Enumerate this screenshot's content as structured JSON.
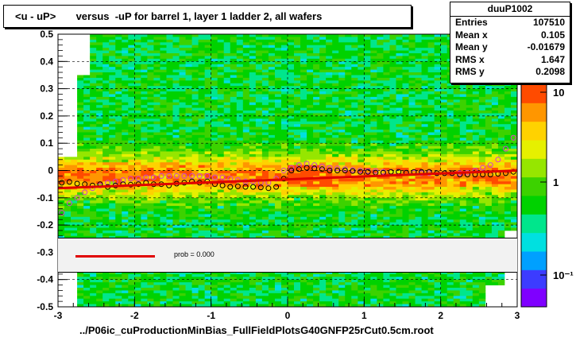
{
  "header": {
    "title": "<u - uP>       versus  -uP for barrel 1, layer 1 ladder 2, all wafers"
  },
  "stats": {
    "name": "duuP1002",
    "rows": [
      {
        "label": "Entries",
        "value": "107510"
      },
      {
        "label": "Mean x",
        "value": "0.105"
      },
      {
        "label": "Mean y",
        "value": "-0.01679"
      },
      {
        "label": "RMS x",
        "value": "1.647"
      },
      {
        "label": "RMS y",
        "value": "0.2098"
      }
    ]
  },
  "legend": {
    "fit_label": "prob = 0.000"
  },
  "colors": {
    "fit_line": "#e00000",
    "profile_black": "#000000",
    "profile_magenta": "#d040d0",
    "colormap": [
      "#7f00ff",
      "#3c3cff",
      "#00a0ff",
      "#00e0e0",
      "#00e68c",
      "#00d200",
      "#3cd200",
      "#96e600",
      "#e6f000",
      "#ffd200",
      "#ff9600",
      "#ff4b00"
    ]
  },
  "chart_data": {
    "type": "heatmap",
    "title": "<u - uP>       versus  -uP for barrel 1, layer 1 ladder 2, all wafers",
    "xlabel": "../P06ic_cuProductionMinBias_FullFieldPlotsG40GNFP25rCut0.5cm.root",
    "ylabel": "",
    "xlim": [
      -3,
      3
    ],
    "ylim": [
      -0.5,
      0.5
    ],
    "x_ticks": [
      "-3",
      "-2",
      "-1",
      "0",
      "1",
      "2",
      "3"
    ],
    "y_ticks": [
      "-0.5",
      "-0.4",
      "-0.3",
      "-0.2",
      "-0.1",
      "0",
      "0.1",
      "0.2",
      "0.3",
      "0.4",
      "0.5"
    ],
    "z_scale": "log",
    "z_ticks": [
      "10",
      "1",
      "10⁻¹"
    ],
    "grid": true,
    "series": [
      {
        "name": "profile black",
        "x": [
          -2.95,
          -2.85,
          -2.75,
          -2.65,
          -2.55,
          -2.45,
          -2.35,
          -2.25,
          -2.15,
          -2.05,
          -1.95,
          -1.85,
          -1.75,
          -1.65,
          -1.55,
          -1.45,
          -1.35,
          -1.25,
          -1.15,
          -1.05,
          -0.95,
          -0.85,
          -0.75,
          -0.65,
          -0.55,
          -0.45,
          -0.35,
          -0.25,
          -0.15,
          -0.05,
          0.05,
          0.15,
          0.25,
          0.35,
          0.45,
          0.55,
          0.65,
          0.75,
          0.85,
          0.95,
          1.05,
          1.15,
          1.25,
          1.35,
          1.45,
          1.55,
          1.65,
          1.75,
          1.85,
          1.95,
          2.05,
          2.15,
          2.25,
          2.35,
          2.45,
          2.55,
          2.65,
          2.75,
          2.85,
          2.95
        ],
        "y": [
          -0.045,
          -0.042,
          -0.048,
          -0.05,
          -0.055,
          -0.05,
          -0.06,
          -0.055,
          -0.05,
          -0.052,
          -0.05,
          -0.045,
          -0.05,
          -0.05,
          -0.055,
          -0.048,
          -0.045,
          -0.04,
          -0.045,
          -0.04,
          -0.05,
          -0.055,
          -0.06,
          -0.058,
          -0.06,
          -0.06,
          -0.062,
          -0.065,
          -0.06,
          -0.03,
          0.0,
          0.005,
          0.01,
          0.008,
          0.005,
          0.0,
          0.0,
          0.0,
          -0.002,
          -0.005,
          -0.005,
          -0.008,
          -0.008,
          -0.005,
          -0.005,
          -0.008,
          -0.005,
          -0.005,
          -0.005,
          -0.01,
          -0.01,
          -0.01,
          -0.015,
          -0.015,
          -0.015,
          -0.015,
          -0.015,
          -0.012,
          -0.01,
          -0.005
        ]
      },
      {
        "name": "profile magenta",
        "x": [
          -2.95,
          -2.85,
          -2.75,
          -2.65,
          -2.55,
          -2.45,
          -2.35,
          -2.25,
          -2.15,
          -2.05,
          -1.95,
          -1.85,
          -1.75,
          -1.65,
          -1.55,
          -1.45,
          -1.35,
          -1.25,
          -1.15,
          -1.05,
          -0.95,
          -0.85,
          -0.75,
          -0.65,
          -0.55,
          -0.45,
          -0.35,
          -0.25,
          -0.15,
          -0.05,
          0.05,
          0.15,
          0.25,
          0.35,
          0.45,
          0.55,
          0.65,
          0.75,
          0.85,
          0.95,
          1.05,
          1.15,
          1.25,
          1.35,
          1.45,
          1.55,
          1.65,
          1.75,
          1.85,
          1.95,
          2.05,
          2.15,
          2.25,
          2.35,
          2.45,
          2.55,
          2.65,
          2.75,
          2.85,
          2.95
        ],
        "y": [
          -0.155,
          -0.12,
          -0.1,
          -0.08,
          -0.065,
          -0.055,
          -0.045,
          -0.04,
          -0.035,
          -0.03,
          -0.03,
          -0.025,
          -0.025,
          -0.02,
          -0.02,
          -0.02,
          -0.02,
          -0.02,
          -0.02,
          -0.02,
          -0.025,
          -0.025,
          -0.03,
          -0.035,
          -0.04,
          -0.04,
          -0.045,
          -0.045,
          -0.03,
          0.0,
          0.01,
          0.02,
          0.025,
          0.02,
          0.015,
          0.01,
          0.008,
          0.005,
          0.002,
          0.0,
          -0.002,
          -0.002,
          -0.005,
          -0.005,
          -0.005,
          -0.008,
          -0.008,
          -0.01,
          -0.01,
          -0.01,
          -0.01,
          -0.01,
          -0.01,
          -0.008,
          0.0,
          0.01,
          0.02,
          0.04,
          0.08,
          0.12
        ]
      },
      {
        "name": "fit",
        "x": [
          -3,
          3
        ],
        "y": [
          -0.065,
          0.0
        ]
      }
    ]
  },
  "axis_labels": {
    "xlabel": "../P06ic_cuProductionMinBias_FullFieldPlotsG40GNFP25rCut0.5cm.root"
  }
}
